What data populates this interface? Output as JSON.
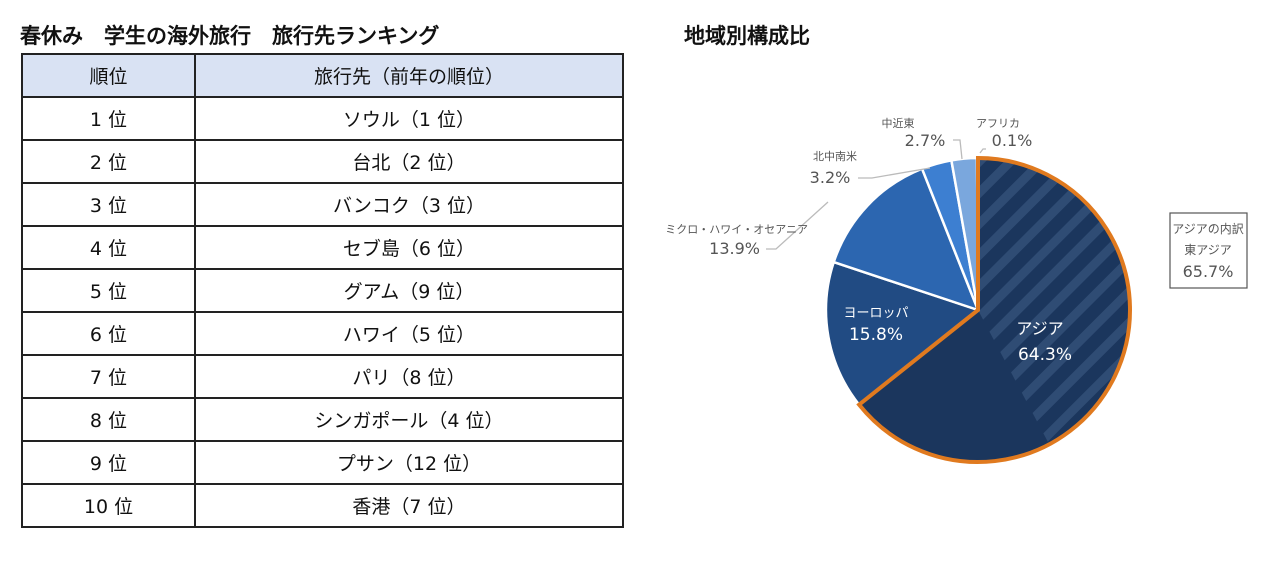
{
  "ranking": {
    "title": "春休み　学生の海外旅行　旅行先ランキング",
    "headers": [
      "順位",
      "旅行先（前年の順位）"
    ],
    "rows": [
      {
        "rank": "1 位",
        "dest": "ソウル（1 位）"
      },
      {
        "rank": "2 位",
        "dest": "台北（2 位）"
      },
      {
        "rank": "3 位",
        "dest": "バンコク（3 位）"
      },
      {
        "rank": "4 位",
        "dest": "セブ島（6 位）"
      },
      {
        "rank": "5 位",
        "dest": "グアム（9 位）"
      },
      {
        "rank": "6 位",
        "dest": "ハワイ（5 位）"
      },
      {
        "rank": "7 位",
        "dest": "パリ（8 位）"
      },
      {
        "rank": "8 位",
        "dest": "シンガポール（4 位）"
      },
      {
        "rank": "9 位",
        "dest": "プサン（12 位）"
      },
      {
        "rank": "10 位",
        "dest": "香港（7 位）"
      }
    ]
  },
  "chart_data": {
    "type": "pie",
    "title": "地域別構成比",
    "start": "top, clockwise",
    "slices": [
      {
        "label": "アジア",
        "value": 64.3,
        "value_label": "64.3%",
        "color": "#1b365d",
        "highlight": "#e07a1f"
      },
      {
        "label": "ヨーロッパ",
        "value": 15.8,
        "value_label": "15.8%",
        "color": "#214b83"
      },
      {
        "label": "ミクロ・ハワイ・オセアニア",
        "value": 13.9,
        "value_label": "13.9%",
        "color": "#2c66b0"
      },
      {
        "label": "北中南米",
        "value": 3.2,
        "value_label": "3.2%",
        "color": "#3d7fd1"
      },
      {
        "label": "中近東",
        "value": 2.7,
        "value_label": "2.7%",
        "color": "#7aa7dd"
      },
      {
        "label": "アフリカ",
        "value": 0.1,
        "value_label": "0.1%",
        "color": "#a9c4e8"
      }
    ],
    "sub_breakdown": {
      "title": "アジアの内訳",
      "label": "東アジア",
      "value": 65.7,
      "value_label": "65.7%",
      "pattern": "hatched"
    }
  }
}
